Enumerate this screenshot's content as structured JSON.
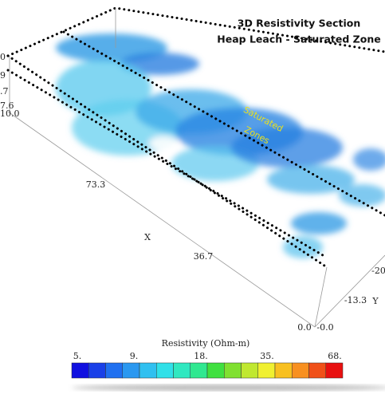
{
  "title": [
    "3D Resistivity Section",
    "Heap Leach - Saturated Zone"
  ],
  "annotation": [
    "Saturated",
    "Zones"
  ],
  "axes": {
    "x": {
      "label": "X",
      "ticks": [
        "73.3",
        "36.7",
        "0.0"
      ]
    },
    "y": {
      "label": "Y",
      "ticks": [
        "-0.0",
        "-13.3",
        "-20"
      ]
    },
    "z": {
      "ticks": [
        "0",
        "9",
        ".7",
        "7.6",
        "10.0"
      ]
    }
  },
  "colorbar": {
    "label": "Resistivity (Ohm-m)",
    "ticks": [
      "5.",
      "9.",
      "18.",
      "35.",
      "68."
    ]
  }
}
